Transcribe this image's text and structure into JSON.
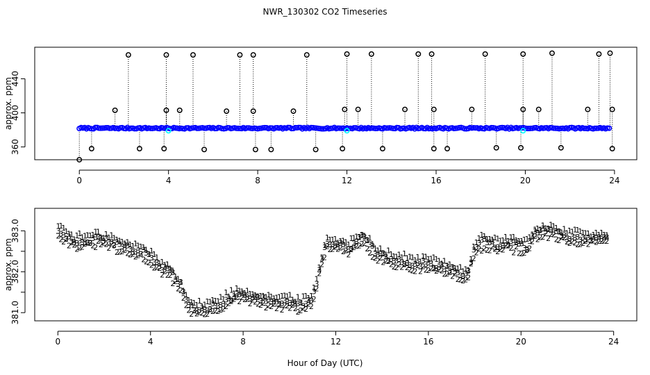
{
  "page_title": "NWR_130302  CO2 Timeseries",
  "colors": {
    "black": "#000000",
    "blue": "#0000ff",
    "cyan": "#00ffff",
    "green": "#00cc00",
    "red": "#ff0000"
  },
  "chart_data": [
    {
      "type": "scatter",
      "name": "top-panel",
      "ylabel": "approx. ppm",
      "xlabel": "",
      "xlim": [
        -2,
        25
      ],
      "ylim": [
        345,
        477
      ],
      "x_ticks": [
        0,
        4,
        8,
        12,
        16,
        20,
        24
      ],
      "x_tick_labels": [
        "0",
        "4",
        "8",
        "12",
        "16",
        "20",
        "24"
      ],
      "y_ticks": [
        360,
        400,
        440
      ],
      "y_tick_labels": [
        "360",
        "400",
        "440"
      ],
      "baseline_ppm": 382,
      "series": [
        {
          "name": "blue-circles",
          "color": "#0000ff",
          "start_hour": 0.0,
          "end_hour": 23.8,
          "step": 0.08
        },
        {
          "name": "cyan-circles",
          "color": "#00ffff",
          "hours": [
            4.0,
            12.0,
            19.9
          ]
        }
      ],
      "outliers": {
        "color": "#000000",
        "hours": [
          0.0,
          0.55,
          1.6,
          2.2,
          2.7,
          3.8,
          3.9,
          3.9,
          4.5,
          5.1,
          5.6,
          6.6,
          7.2,
          7.8,
          7.8,
          7.9,
          8.6,
          9.6,
          10.2,
          10.6,
          11.8,
          11.9,
          12.0,
          12.5,
          13.1,
          13.6,
          14.6,
          15.2,
          15.8,
          15.9,
          15.9,
          16.5,
          17.6,
          18.2,
          18.7,
          19.8,
          19.9,
          19.9,
          20.6,
          21.2,
          21.6,
          22.8,
          23.3,
          23.8,
          23.9,
          23.9
        ],
        "values": [
          345,
          358,
          403,
          468,
          358,
          358,
          403,
          468,
          403,
          468,
          357,
          402,
          468,
          468,
          402,
          357,
          357,
          402,
          468,
          357,
          358,
          404,
          469,
          404,
          469,
          358,
          404,
          469,
          469,
          404,
          358,
          358,
          404,
          469,
          359,
          359,
          404,
          469,
          404,
          470,
          359,
          404,
          469,
          470,
          404,
          358
        ]
      }
    },
    {
      "type": "scatter",
      "name": "bottom-panel",
      "ylabel": "approx. ppm",
      "xlabel": "Hour of Day (UTC)",
      "xlim": [
        -1,
        25
      ],
      "ylim": [
        380.8,
        383.55
      ],
      "x_ticks": [
        0,
        4,
        8,
        12,
        16,
        20,
        24
      ],
      "x_tick_labels": [
        "0",
        "4",
        "8",
        "12",
        "16",
        "20",
        "24"
      ],
      "y_ticks": [
        381.0,
        381.5,
        382.0,
        382.5,
        383.0
      ],
      "y_tick_labels": [
        "381.0",
        "",
        "382.0",
        "",
        "383.0"
      ],
      "series": [
        {
          "name": "1",
          "label": "1",
          "color": "#ff0000",
          "offset": 0.12
        },
        {
          "name": "2",
          "label": "2",
          "color": "#00cc00",
          "offset": -0.12
        },
        {
          "name": "3",
          "label": "3",
          "color": "#0000ff",
          "offset": 0.0
        }
      ],
      "base_curve": {
        "x": [
          0.0,
          0.3,
          0.7,
          1.2,
          1.8,
          2.3,
          2.7,
          3.2,
          3.6,
          4.0,
          4.4,
          4.9,
          5.3,
          5.6,
          6.0,
          6.4,
          6.9,
          7.4,
          7.8,
          8.2,
          8.6,
          9.0,
          9.5,
          10.0,
          10.4,
          10.8,
          11.0,
          11.3,
          11.6,
          12.0,
          12.5,
          12.9,
          13.2,
          13.6,
          14.0,
          14.5,
          15.0,
          15.5,
          16.0,
          16.5,
          17.0,
          17.4,
          17.7,
          18.0,
          18.4,
          18.9,
          19.4,
          19.9,
          20.3,
          20.6,
          21.0,
          21.5,
          22.0,
          22.5,
          23.0,
          23.5,
          23.8
        ],
        "y": [
          383.05,
          382.9,
          382.75,
          382.75,
          382.8,
          382.75,
          382.6,
          382.55,
          382.5,
          382.35,
          382.15,
          381.95,
          381.7,
          381.2,
          381.1,
          381.1,
          381.2,
          381.35,
          381.45,
          381.4,
          381.35,
          381.3,
          381.25,
          381.25,
          381.2,
          381.25,
          381.3,
          382.05,
          382.7,
          382.7,
          382.55,
          382.75,
          382.85,
          382.55,
          382.4,
          382.3,
          382.25,
          382.2,
          382.2,
          382.15,
          382.05,
          381.95,
          381.9,
          382.6,
          382.75,
          382.65,
          382.7,
          382.65,
          382.6,
          382.95,
          383.0,
          382.95,
          382.85,
          382.85,
          382.8,
          382.85,
          382.8
        ]
      }
    }
  ]
}
